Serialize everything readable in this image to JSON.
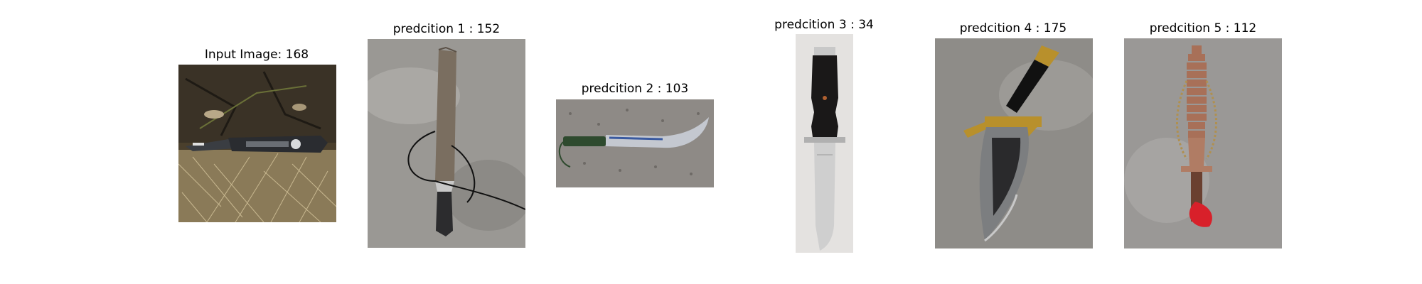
{
  "figure": {
    "panels": [
      {
        "title": "Input Image: 168",
        "image_subject": "black folding knife on pine needles and bark"
      },
      {
        "title": "predcition 1 : 152",
        "image_subject": "machete with black cord on concrete"
      },
      {
        "title": "predcition 2 : 103",
        "image_subject": "curved blade with green cord handle on pavement"
      },
      {
        "title": "predcition 3 : 34",
        "image_subject": "fixed blade knife with black handle on white background"
      },
      {
        "title": "predcition 4 : 175",
        "image_subject": "ornate dagger with gold eagle guard on concrete"
      },
      {
        "title": "predcition 5 : 112",
        "image_subject": "decorative pagoda-style sword with red tassel on concrete"
      }
    ]
  }
}
